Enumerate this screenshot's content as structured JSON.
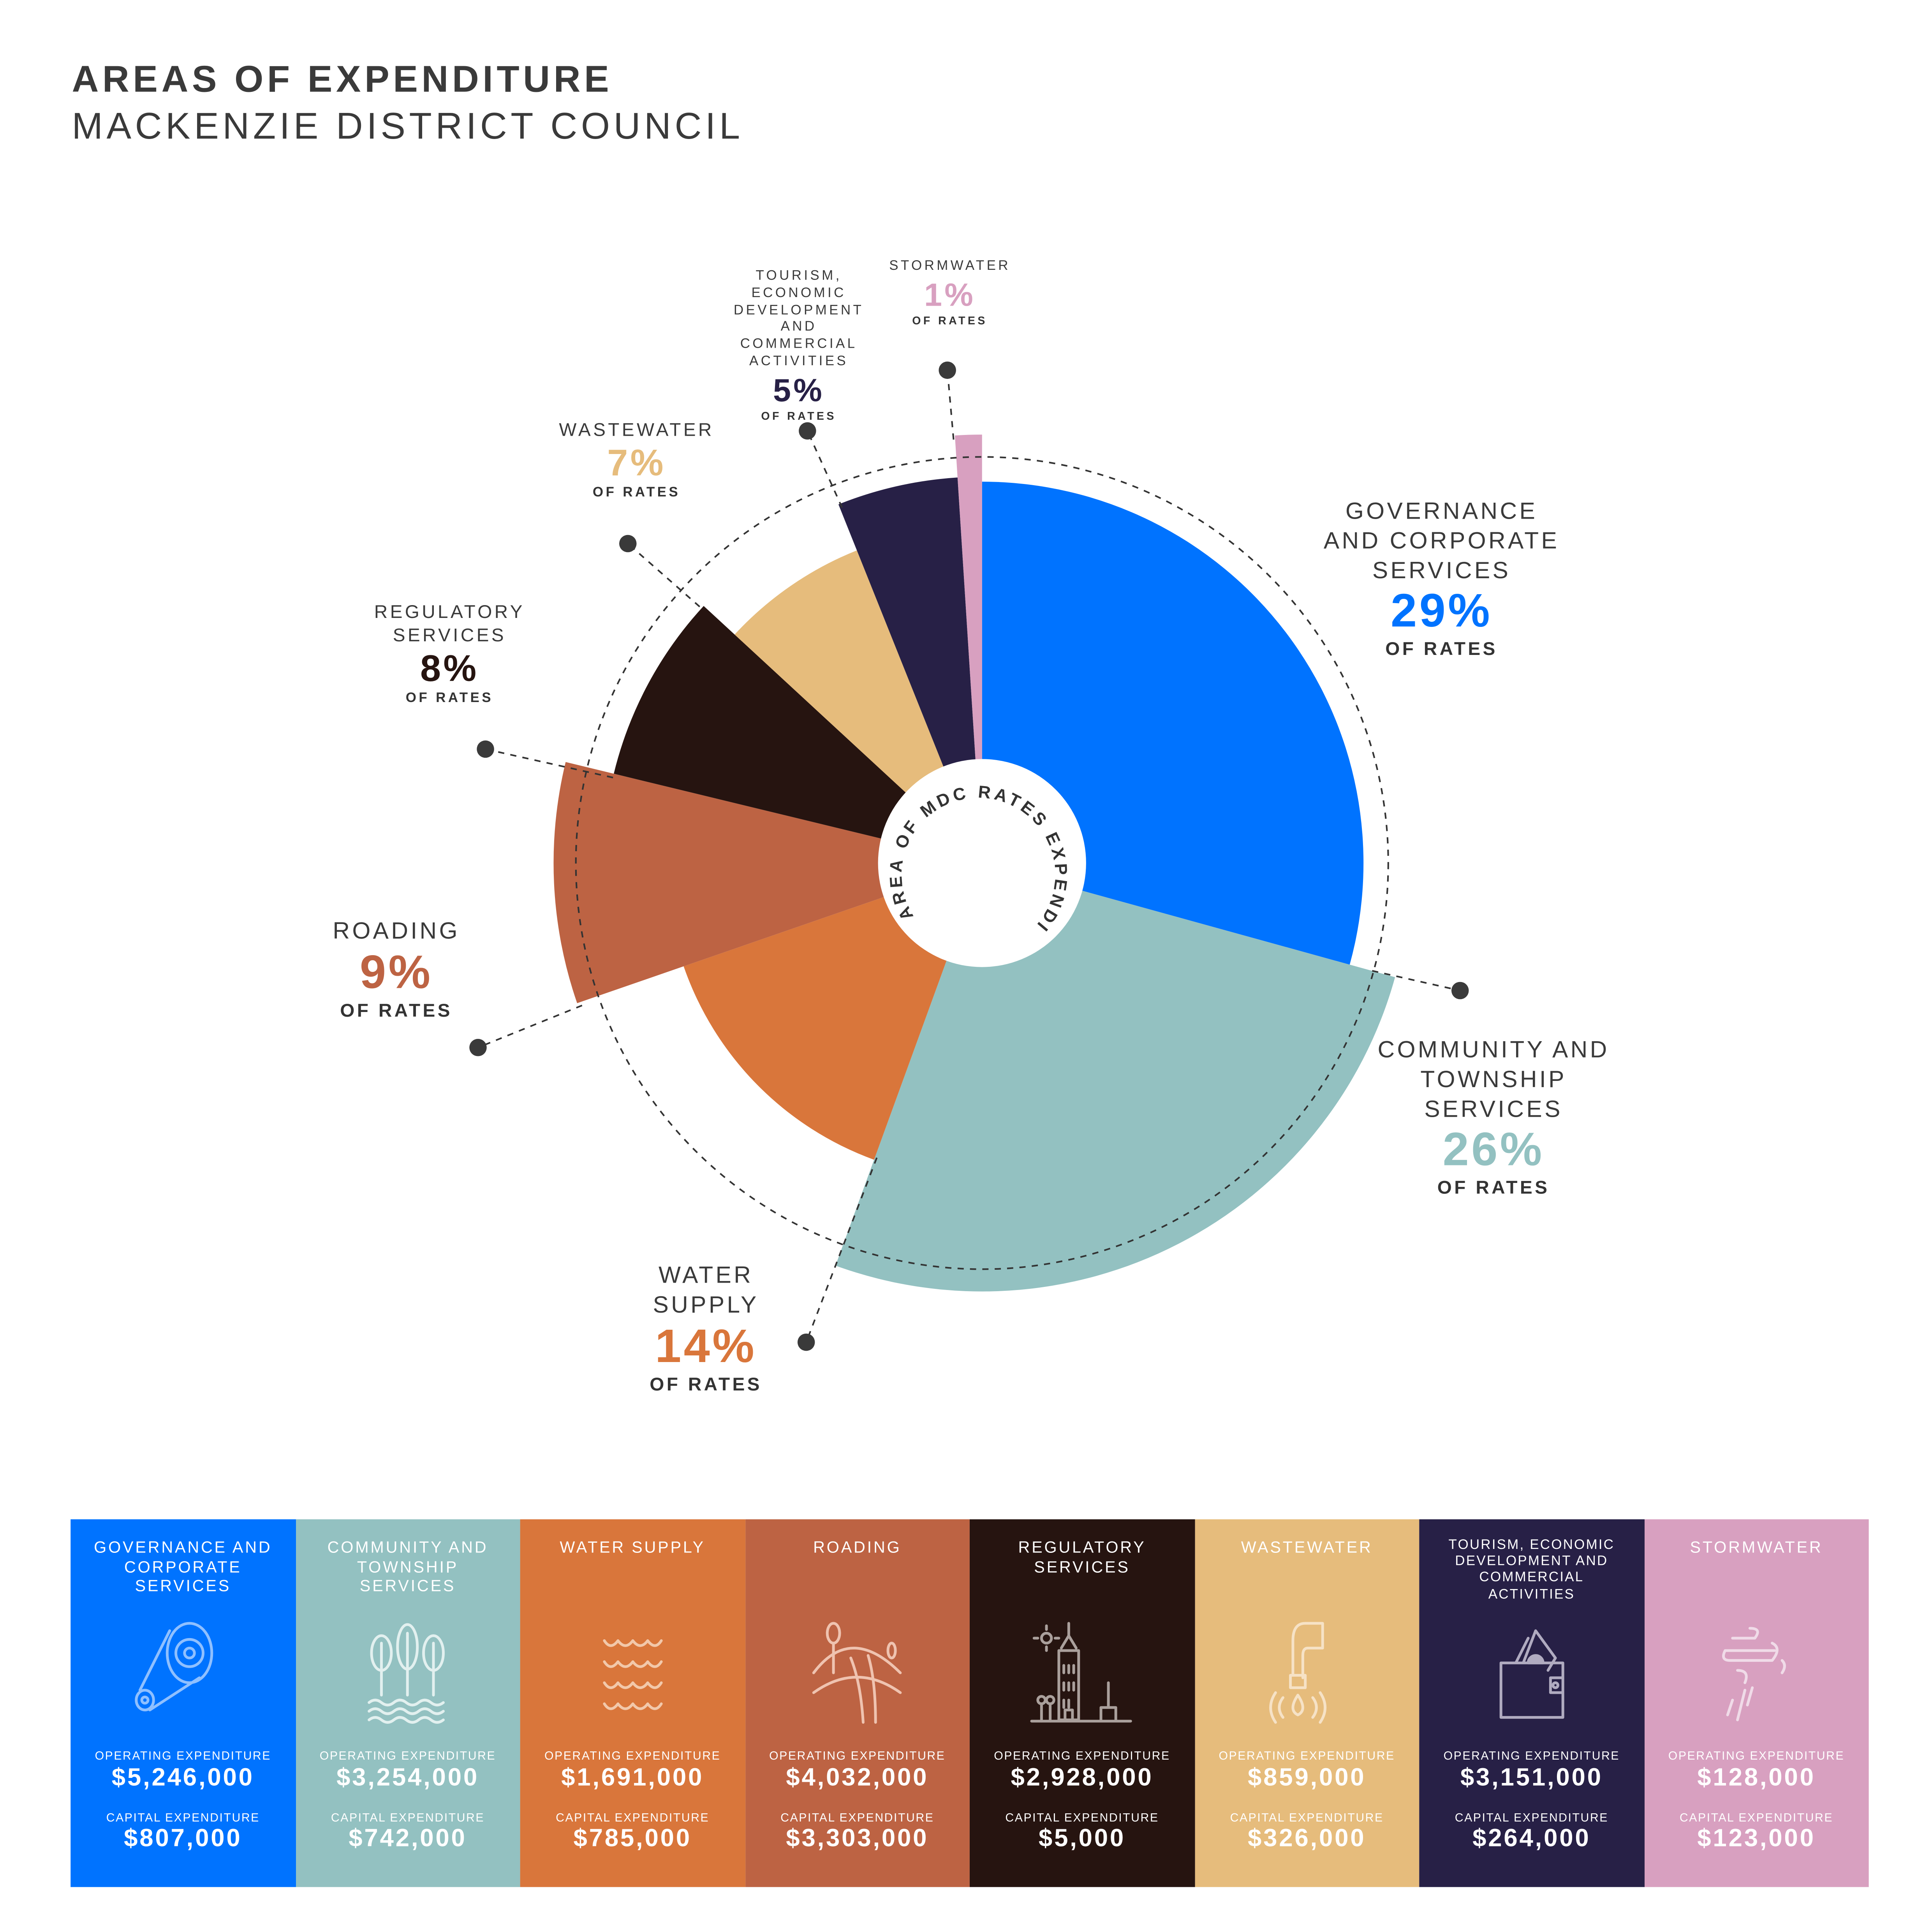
{
  "header": {
    "title": "AREAS OF EXPENDITURE",
    "subtitle": "MACKENZIE DISTRICT COUNCIL"
  },
  "chart_data": {
    "type": "pie",
    "title": "AREAS OF EXPENDITURE",
    "center_label": "AREA OF MDC RATES EXPENDITURE",
    "unit_label": "OF RATES",
    "categories": [
      "GOVERNANCE AND CORPORATE SERVICES",
      "COMMUNITY AND TOWNSHIP SERVICES",
      "WATER SUPPLY",
      "ROADING",
      "REGULATORY SERVICES",
      "WASTEWATER",
      "TOURISM, ECONOMIC DEVELOPMENT AND COMMERCIAL ACTIVITIES",
      "STORMWATER"
    ],
    "values": [
      29,
      26,
      14,
      9,
      8,
      7,
      5,
      1
    ],
    "pct_labels": [
      "29%",
      "26%",
      "14%",
      "9%",
      "8%",
      "7%",
      "5%",
      "1%"
    ],
    "colors": [
      "#0073ff",
      "#93c1c1",
      "#d9763b",
      "#bd6343",
      "#261410",
      "#e6bc7c",
      "#272046",
      "#d8a0c0"
    ]
  },
  "panels": [
    {
      "name": "GOVERNANCE AND CORPORATE SERVICES",
      "icon": "gear-belt-icon",
      "operating_label": "OPERATING EXPENDITURE",
      "operating": "$5,246,000",
      "capital_label": "CAPITAL EXPENDITURE",
      "capital": "$807,000"
    },
    {
      "name": "COMMUNITY AND TOWNSHIP SERVICES",
      "icon": "trees-icon",
      "operating_label": "OPERATING EXPENDITURE",
      "operating": "$3,254,000",
      "capital_label": "CAPITAL EXPENDITURE",
      "capital": "$742,000"
    },
    {
      "name": "WATER SUPPLY",
      "icon": "waves-icon",
      "operating_label": "OPERATING EXPENDITURE",
      "operating": "$1,691,000",
      "capital_label": "CAPITAL EXPENDITURE",
      "capital": "$785,000"
    },
    {
      "name": "ROADING",
      "icon": "road-icon",
      "operating_label": "OPERATING EXPENDITURE",
      "operating": "$4,032,000",
      "capital_label": "CAPITAL EXPENDITURE",
      "capital": "$3,303,000"
    },
    {
      "name": "REGULATORY SERVICES",
      "icon": "city-building-icon",
      "operating_label": "OPERATING EXPENDITURE",
      "operating": "$2,928,000",
      "capital_label": "CAPITAL EXPENDITURE",
      "capital": "$5,000"
    },
    {
      "name": "WASTEWATER",
      "icon": "tap-drop-icon",
      "operating_label": "OPERATING EXPENDITURE",
      "operating": "$859,000",
      "capital_label": "CAPITAL EXPENDITURE",
      "capital": "$326,000"
    },
    {
      "name": "TOURISM, ECONOMIC DEVELOPMENT AND COMMERCIAL ACTIVITIES",
      "icon": "wallet-icon",
      "operating_label": "OPERATING EXPENDITURE",
      "operating": "$3,151,000",
      "capital_label": "CAPITAL EXPENDITURE",
      "capital": "$264,000"
    },
    {
      "name": "STORMWATER",
      "icon": "wind-rain-icon",
      "operating_label": "OPERATING EXPENDITURE",
      "operating": "$128,000",
      "capital_label": "CAPITAL EXPENDITURE",
      "capital": "$123,000"
    }
  ]
}
